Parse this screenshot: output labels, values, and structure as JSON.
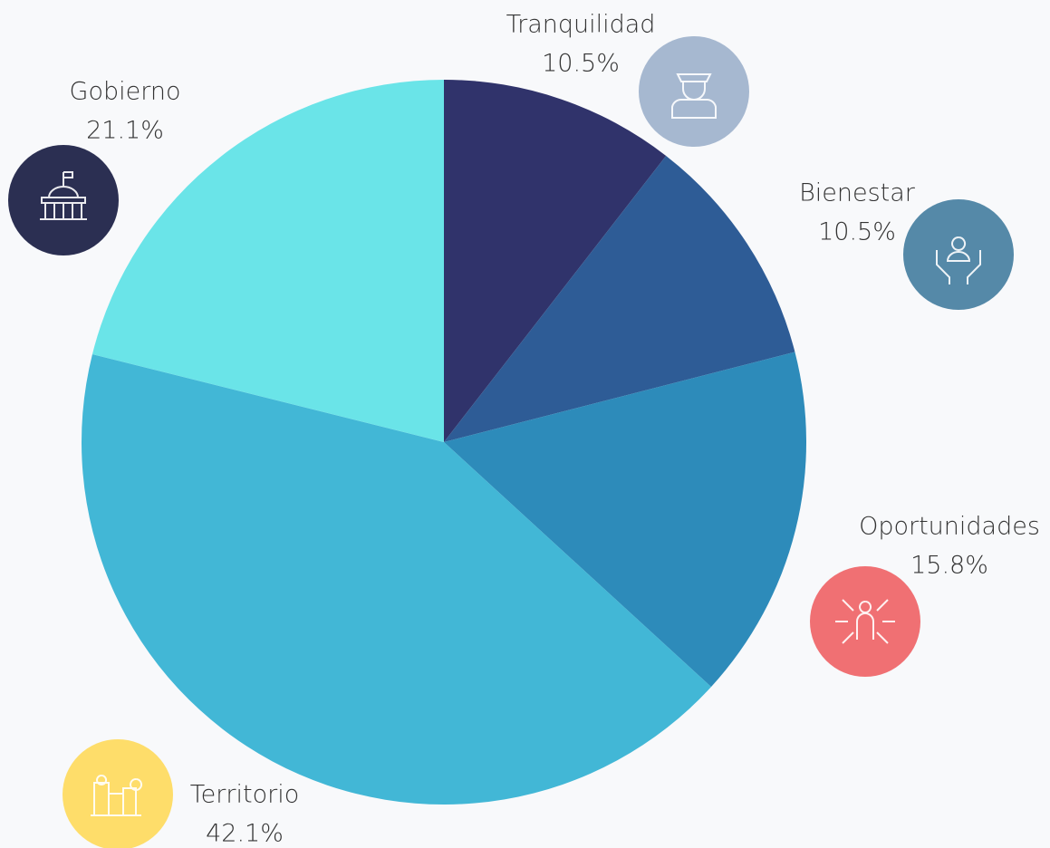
{
  "chart_data": {
    "type": "pie",
    "categories": [
      "Tranquilidad",
      "Bienestar",
      "Oportunidades",
      "Territorio",
      "Gobierno"
    ],
    "values": [
      10.5,
      10.5,
      15.8,
      42.1,
      21.1
    ],
    "value_labels": [
      "10.5%",
      "10.5%",
      "15.8%",
      "42.1%",
      "21.1%"
    ],
    "colors": [
      "#30336b",
      "#2e5c96",
      "#2d8bba",
      "#42b7d6",
      "#6ae4e8"
    ]
  }
}
